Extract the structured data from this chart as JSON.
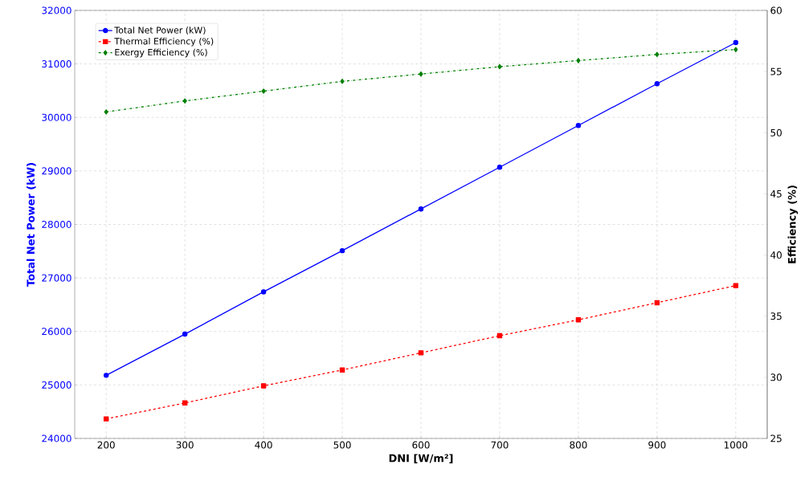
{
  "chart_data": {
    "type": "line",
    "xlabel": "DNI [W/m²]",
    "ylabel": "Total Net Power (kW)",
    "y2label": "Efficiency (%)",
    "x": [
      200,
      300,
      400,
      500,
      600,
      700,
      800,
      900,
      1000
    ],
    "series": [
      {
        "name": "Total Net Power (kW)",
        "color": "#0000ff",
        "marker": "circle",
        "line_style": "solid",
        "axis": "y",
        "values": [
          25180,
          25950,
          26740,
          27510,
          28290,
          29070,
          29850,
          30630,
          31400
        ]
      },
      {
        "name": "Thermal Efficiency (%)",
        "color": "#ff0000",
        "marker": "square",
        "line_style": "dashed",
        "axis": "y2",
        "values": [
          26.6,
          27.9,
          29.3,
          30.6,
          32.0,
          33.4,
          34.7,
          36.1,
          37.5
        ]
      },
      {
        "name": "Exergy Efficiency (%)",
        "color": "#008000",
        "marker": "diamond",
        "line_style": "dashdot",
        "axis": "y2",
        "values": [
          51.7,
          52.6,
          53.4,
          54.2,
          54.8,
          55.4,
          55.9,
          56.4,
          56.8
        ]
      }
    ],
    "xlim": [
      160,
      1040
    ],
    "ylim": [
      24000,
      32000
    ],
    "y2lim": [
      25,
      60
    ],
    "xticks": [
      200,
      300,
      400,
      500,
      600,
      700,
      800,
      900,
      1000
    ],
    "yticks": [
      24000,
      25000,
      26000,
      27000,
      28000,
      29000,
      30000,
      31000,
      32000
    ],
    "y2ticks": [
      25,
      30,
      35,
      40,
      45,
      50,
      55,
      60
    ],
    "grid": true,
    "legend": "top left"
  }
}
